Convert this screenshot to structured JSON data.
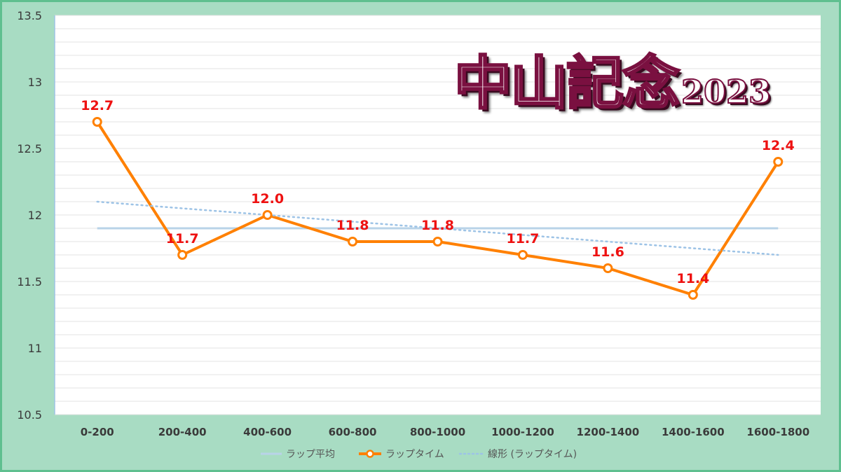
{
  "title": {
    "main": "中山記念",
    "year": "2023"
  },
  "colors": {
    "lap": "#ff8000",
    "average": "#b9d3e8",
    "trend": "#9dc3e6",
    "label": "#ee1111",
    "background": "#a8dcc3",
    "plot_bg": "#ffffff"
  },
  "chart_data": {
    "type": "line",
    "categories": [
      "0-200",
      "200-400",
      "400-600",
      "600-800",
      "800-1000",
      "1000-1200",
      "1200-1400",
      "1400-1600",
      "1600-1800"
    ],
    "ylim": [
      10.5,
      13.5
    ],
    "yticks": [
      "10.5",
      "11",
      "11.5",
      "12",
      "12.5",
      "13",
      "13.5"
    ],
    "grid": true,
    "legend_position": "bottom",
    "series": [
      {
        "name": "ラップ平均",
        "kind": "average",
        "values": [
          11.9,
          11.9,
          11.9,
          11.9,
          11.9,
          11.9,
          11.9,
          11.9,
          11.9
        ]
      },
      {
        "name": "ラップタイム",
        "kind": "lap",
        "values": [
          12.7,
          11.7,
          12.0,
          11.8,
          11.8,
          11.7,
          11.6,
          11.4,
          12.4
        ],
        "labels": [
          "12.7",
          "11.7",
          "12.0",
          "11.8",
          "11.8",
          "11.7",
          "11.6",
          "11.4",
          "12.4"
        ]
      },
      {
        "name": "線形 (ラップタイム)",
        "kind": "trend",
        "values": [
          12.1,
          12.05,
          12.0,
          11.95,
          11.9,
          11.85,
          11.8,
          11.75,
          11.7
        ]
      }
    ]
  }
}
